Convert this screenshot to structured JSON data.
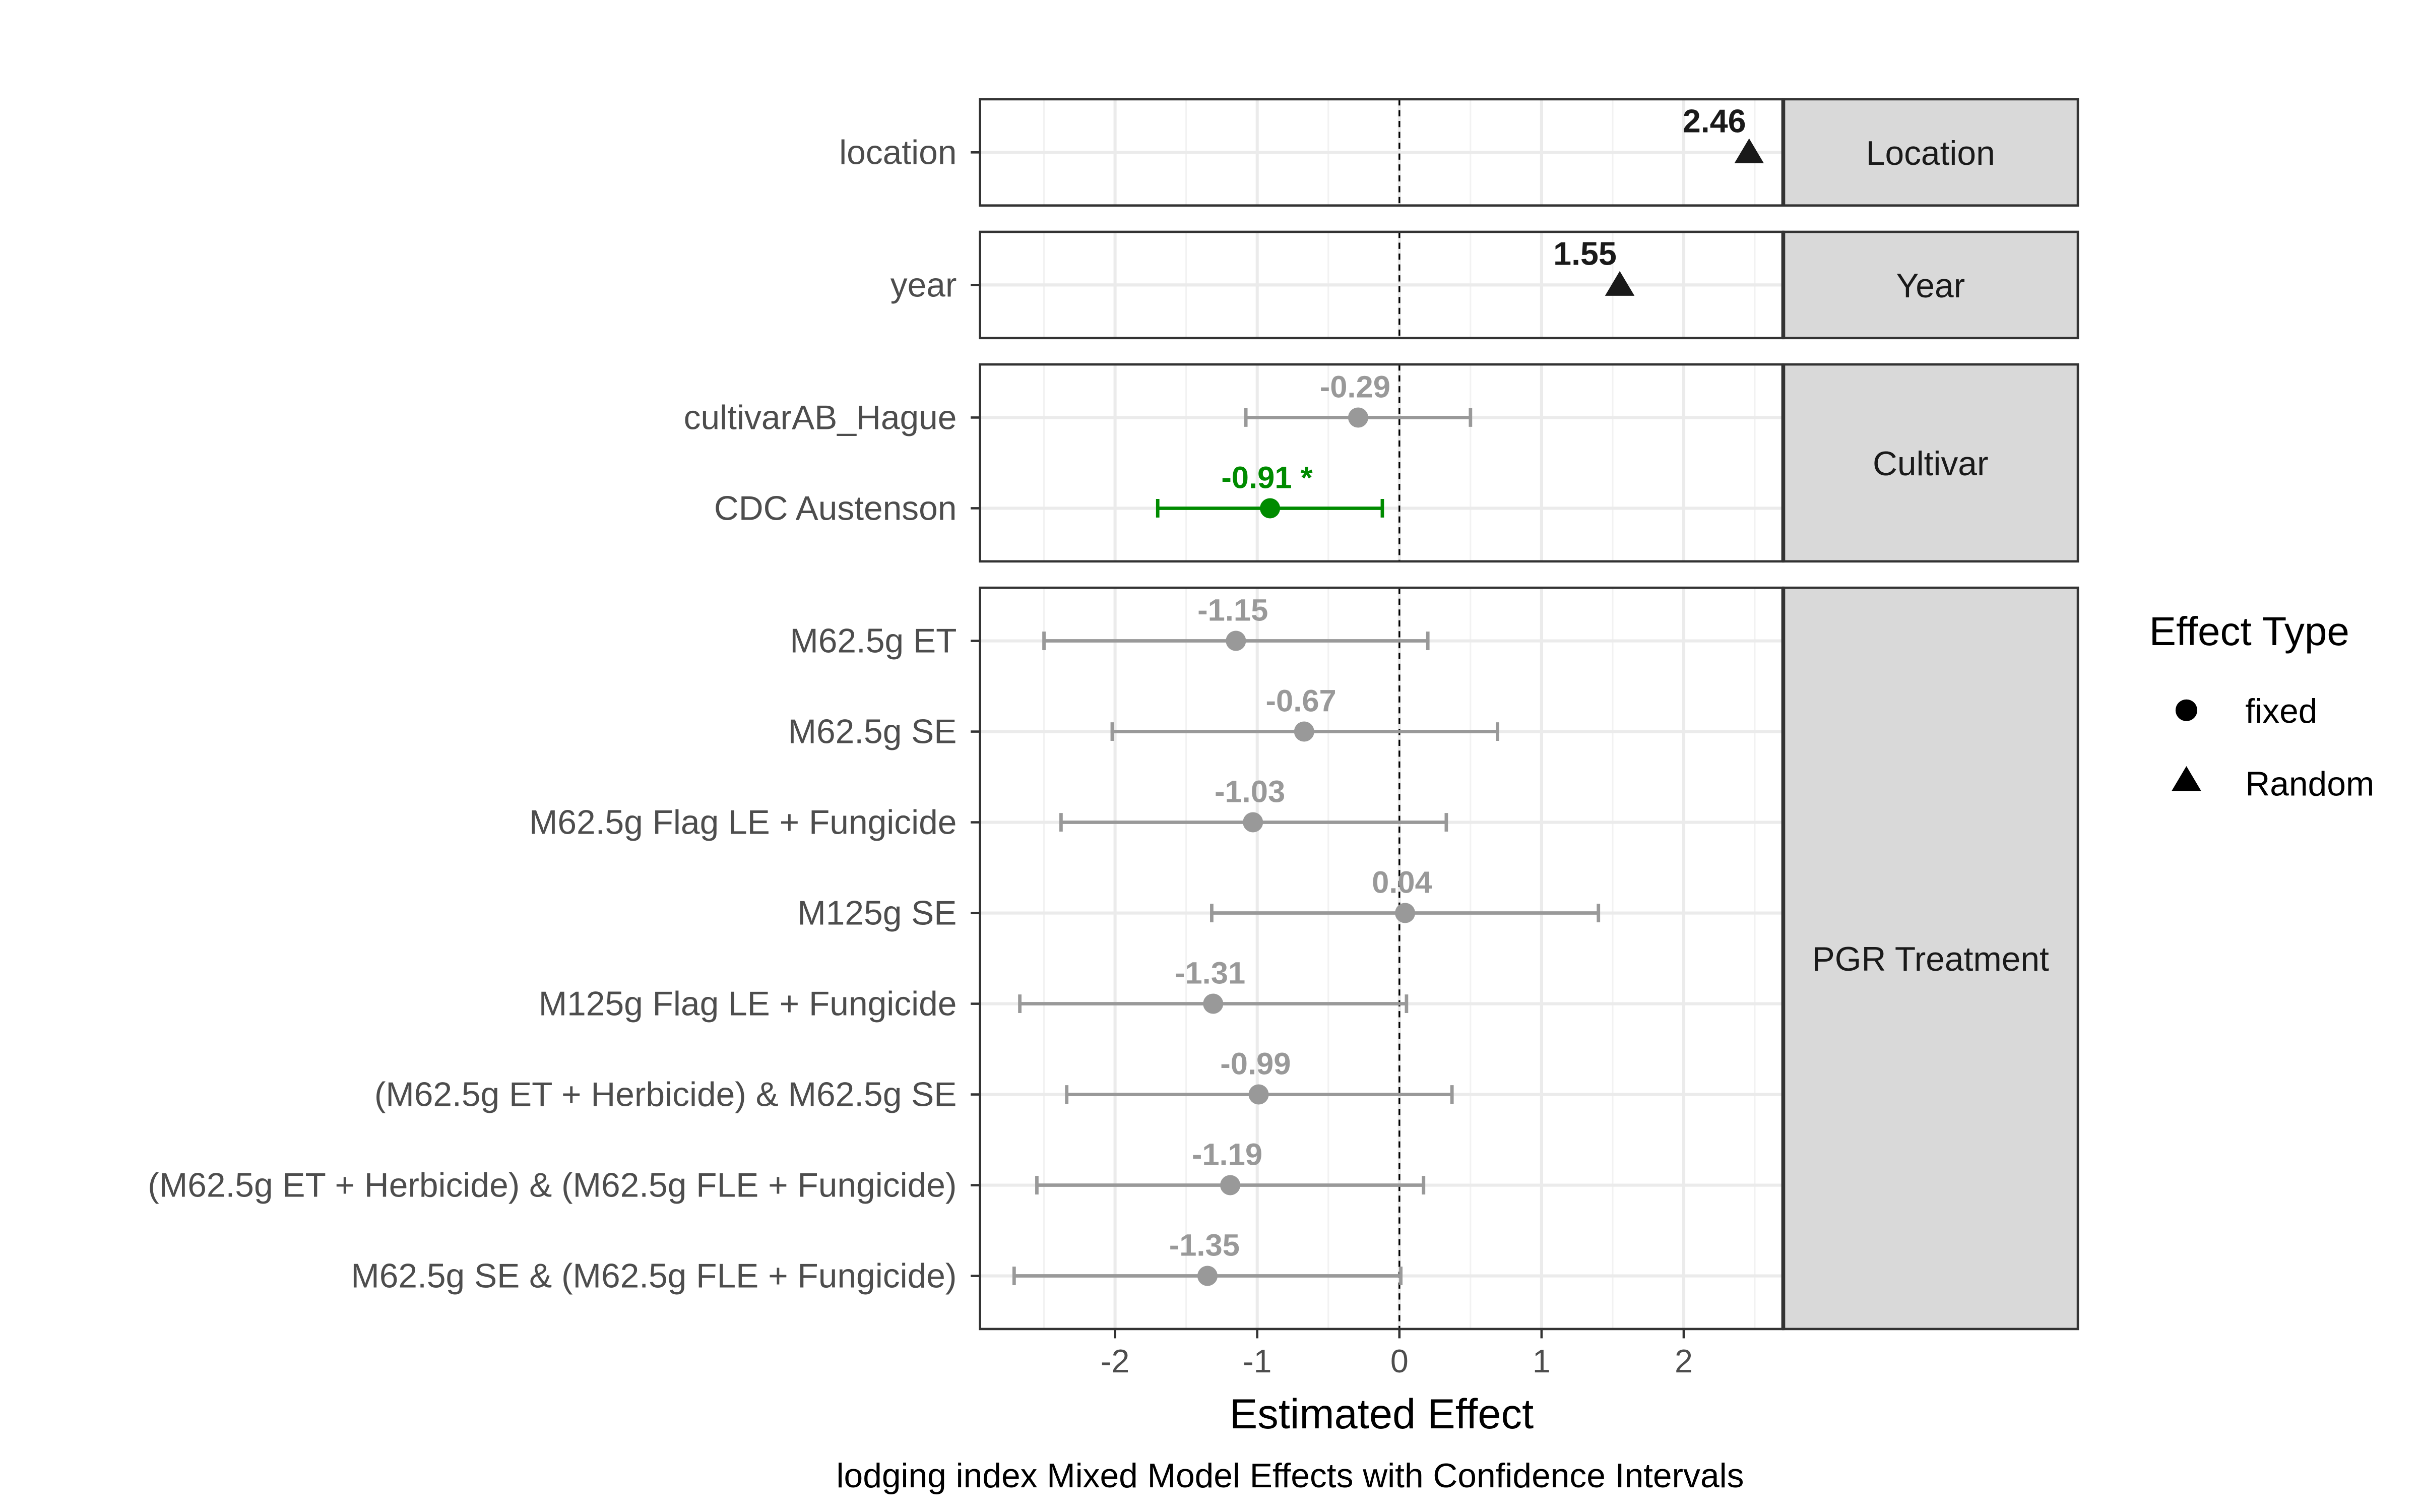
{
  "chart_data": {
    "type": "scatter",
    "xlabel": "Estimated Effect",
    "caption": "lodging index Mixed Model Effects with Confidence Intervals",
    "xlim": [
      -2.95,
      2.7
    ],
    "x_ticks": [
      -2,
      -1,
      0,
      1,
      2
    ],
    "x_tick_labels": [
      "-2",
      "-1",
      "0",
      "1",
      "2"
    ],
    "reference_line": 0,
    "grid": true,
    "colors": {
      "significant": "#008B00",
      "non_significant": "#999999",
      "random": "#1a1a1a",
      "strip_bg": "#d9d9d9"
    },
    "legend": {
      "title": "Effect Type",
      "placement": "right",
      "entries": [
        {
          "label": "fixed",
          "shape": "circle"
        },
        {
          "label": "Random",
          "shape": "triangle"
        }
      ]
    },
    "panels": [
      {
        "label": "Location",
        "terms": [
          {
            "term": "location",
            "estimate": 2.46,
            "label": "2.46",
            "type": "Random"
          }
        ]
      },
      {
        "label": "Year",
        "terms": [
          {
            "term": "year",
            "estimate": 1.55,
            "label": "1.55",
            "type": "Random"
          }
        ]
      },
      {
        "label": "Cultivar",
        "terms": [
          {
            "term": "cultivarAB_Hague",
            "estimate": -0.29,
            "lower": -1.08,
            "upper": 0.5,
            "label": "-0.29",
            "type": "fixed",
            "significant": false
          },
          {
            "term": "CDC Austenson",
            "estimate": -0.91,
            "lower": -1.7,
            "upper": -0.12,
            "label": "-0.91 *",
            "type": "fixed",
            "significant": true
          }
        ]
      },
      {
        "label": "PGR Treatment",
        "terms": [
          {
            "term": "M62.5g ET",
            "estimate": -1.15,
            "lower": -2.5,
            "upper": 0.2,
            "label": "-1.15",
            "type": "fixed",
            "significant": false
          },
          {
            "term": "M62.5g SE",
            "estimate": -0.67,
            "lower": -2.02,
            "upper": 0.69,
            "label": "-0.67",
            "type": "fixed",
            "significant": false
          },
          {
            "term": "M62.5g Flag LE + Fungicide",
            "estimate": -1.03,
            "lower": -2.38,
            "upper": 0.33,
            "label": "-1.03",
            "type": "fixed",
            "significant": false
          },
          {
            "term": "M125g SE",
            "estimate": 0.04,
            "lower": -1.32,
            "upper": 1.4,
            "label": "0.04",
            "type": "fixed",
            "significant": false
          },
          {
            "term": "M125g Flag LE + Fungicide",
            "estimate": -1.31,
            "lower": -2.67,
            "upper": 0.05,
            "label": "-1.31",
            "type": "fixed",
            "significant": false
          },
          {
            "term": "(M62.5g ET + Herbicide) & M62.5g SE",
            "estimate": -0.99,
            "lower": -2.34,
            "upper": 0.37,
            "label": "-0.99",
            "type": "fixed",
            "significant": false
          },
          {
            "term": "(M62.5g ET + Herbicide) & (M62.5g FLE + Fungicide)",
            "estimate": -1.19,
            "lower": -2.55,
            "upper": 0.17,
            "label": "-1.19",
            "type": "fixed",
            "significant": false
          },
          {
            "term": "M62.5g SE & (M62.5g FLE + Fungicide)",
            "estimate": -1.35,
            "lower": -2.71,
            "upper": 0.01,
            "label": "-1.35",
            "type": "fixed",
            "significant": false
          }
        ]
      }
    ]
  }
}
